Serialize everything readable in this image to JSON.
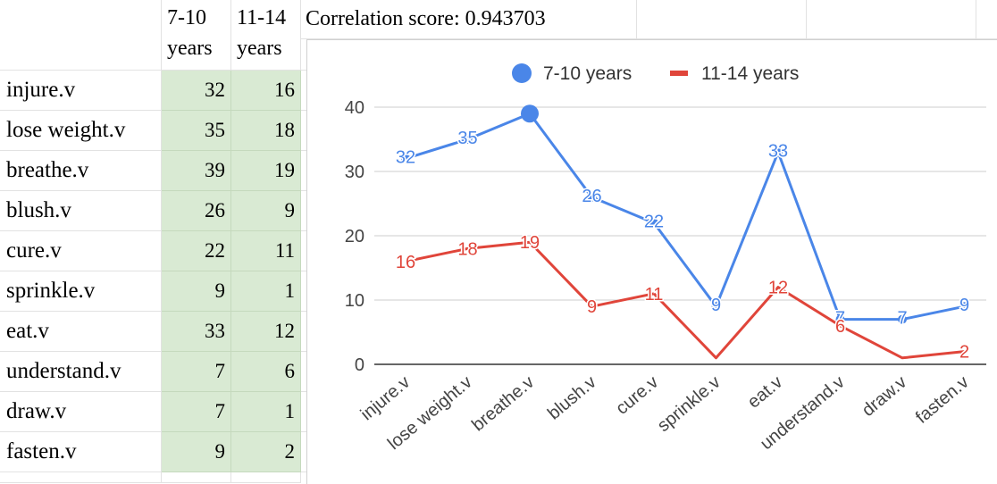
{
  "sheet": {
    "headers": {
      "a": "",
      "b": "7-10 years",
      "c": "11-14 years"
    },
    "correlation_label": "Correlation score: 0.943703",
    "rows": [
      {
        "label": "injure.v",
        "v1": "32",
        "v2": "16"
      },
      {
        "label": "lose weight.v",
        "v1": "35",
        "v2": "18"
      },
      {
        "label": "breathe.v",
        "v1": "39",
        "v2": "19"
      },
      {
        "label": "blush.v",
        "v1": "26",
        "v2": "9"
      },
      {
        "label": "cure.v",
        "v1": "22",
        "v2": "11"
      },
      {
        "label": "sprinkle.v",
        "v1": "9",
        "v2": "1"
      },
      {
        "label": "eat.v",
        "v1": "33",
        "v2": "12"
      },
      {
        "label": "understand.v",
        "v1": "7",
        "v2": "6"
      },
      {
        "label": "draw.v",
        "v1": "7",
        "v2": "1"
      },
      {
        "label": "fasten.v",
        "v1": "9",
        "v2": "2"
      }
    ]
  },
  "chart_data": {
    "type": "line",
    "categories": [
      "injure.v",
      "lose weight.v",
      "breathe.v",
      "blush.v",
      "cure.v",
      "sprinkle.v",
      "eat.v",
      "understand.v",
      "draw.v",
      "fasten.v"
    ],
    "series": [
      {
        "name": "7-10 years",
        "values": [
          32,
          35,
          39,
          26,
          22,
          9,
          33,
          7,
          7,
          9
        ],
        "color": "#4a86e8",
        "labels": [
          "32",
          "35",
          "",
          "26",
          "22",
          "9",
          "33",
          "7",
          "7",
          "9"
        ]
      },
      {
        "name": "11-14 years",
        "values": [
          16,
          18,
          19,
          9,
          11,
          1,
          12,
          6,
          1,
          2
        ],
        "color": "#e0453a",
        "labels": [
          "16",
          "18",
          "19",
          "9",
          "11",
          "",
          "12",
          "6",
          "",
          "2"
        ]
      }
    ],
    "yticks": [
      "0",
      "10",
      "20",
      "30",
      "40"
    ],
    "ylim": [
      0,
      40
    ],
    "legend": "top",
    "grid": true
  }
}
